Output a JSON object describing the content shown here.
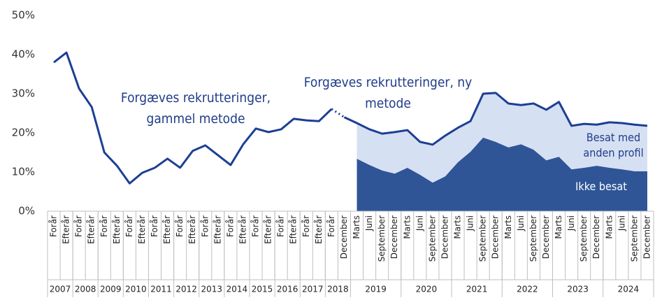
{
  "chart_data": {
    "type": "line",
    "categories": [
      "Forår",
      "Efterår",
      "Forår",
      "Efterår",
      "Forår",
      "Efterår",
      "Forår",
      "Efterår",
      "Forår",
      "Efterår",
      "Forår",
      "Efterår",
      "Forår",
      "Efterår",
      "Forår",
      "Efterår",
      "Forår",
      "Efterår",
      "Forår",
      "Efterår",
      "Forår",
      "Efterår",
      "Forår",
      "December",
      "Marts",
      "Juni",
      "September",
      "December",
      "Marts",
      "Juni",
      "September",
      "December",
      "Marts",
      "Juni",
      "September",
      "December",
      "Marts",
      "Juni",
      "September",
      "December",
      "Marts",
      "Juni",
      "September",
      "December",
      "Marts",
      "Juni",
      "September",
      "December"
    ],
    "category_years": [
      "2007",
      "2007",
      "2008",
      "2008",
      "2009",
      "2009",
      "2010",
      "2010",
      "2011",
      "2011",
      "2012",
      "2012",
      "2013",
      "2013",
      "2014",
      "2014",
      "2015",
      "2015",
      "2016",
      "2016",
      "2017",
      "2017",
      "2018",
      "2018",
      "2019",
      "2019",
      "2019",
      "2019",
      "2020",
      "2020",
      "2020",
      "2020",
      "2021",
      "2021",
      "2021",
      "2021",
      "2022",
      "2022",
      "2022",
      "2022",
      "2023",
      "2023",
      "2023",
      "2023",
      "2024",
      "2024",
      "2024",
      "2024"
    ],
    "series": [
      {
        "name": "Forgæves rekrutteringer, gammel metode",
        "color": "#1c3f94",
        "values": [
          38.0,
          40.5,
          31.3,
          26.6,
          15.0,
          11.6,
          7.1,
          9.8,
          11.1,
          13.4,
          11.1,
          15.4,
          16.8,
          14.3,
          11.8,
          17.1,
          21.1,
          20.2,
          20.9,
          23.6,
          23.2,
          23.0,
          26.1,
          null,
          null,
          null,
          null,
          null,
          null,
          null,
          null,
          null,
          null,
          null,
          null,
          null,
          null,
          null,
          null,
          null,
          null,
          null,
          null,
          null,
          null,
          null,
          null,
          null
        ]
      },
      {
        "name": "Forgæves rekrutteringer, ny metode",
        "color": "#1c3f94",
        "values": [
          null,
          null,
          null,
          null,
          null,
          null,
          null,
          null,
          null,
          null,
          null,
          null,
          null,
          null,
          null,
          null,
          null,
          null,
          null,
          null,
          null,
          null,
          null,
          24.0,
          22.5,
          20.9,
          19.8,
          20.2,
          20.7,
          17.7,
          17.0,
          19.3,
          21.3,
          23.0,
          30.0,
          30.2,
          27.5,
          27.1,
          27.5,
          25.9,
          27.9,
          21.8,
          22.3,
          22.1,
          22.7,
          22.5,
          22.1,
          21.8
        ]
      }
    ],
    "areas": [
      {
        "name": "Ikke besat",
        "color": "#2f5597",
        "values": [
          null,
          null,
          null,
          null,
          null,
          null,
          null,
          null,
          null,
          null,
          null,
          null,
          null,
          null,
          null,
          null,
          null,
          null,
          null,
          null,
          null,
          null,
          null,
          null,
          13.4,
          11.8,
          10.4,
          9.6,
          11.1,
          9.3,
          7.3,
          8.9,
          12.5,
          15.2,
          18.8,
          17.7,
          16.3,
          17.1,
          15.7,
          13.0,
          13.9,
          10.7,
          11.1,
          11.6,
          11.1,
          10.7,
          10.2,
          10.2
        ]
      },
      {
        "name": "Besat med anden profil",
        "color": "#d6e0f3",
        "values": [
          null,
          null,
          null,
          null,
          null,
          null,
          null,
          null,
          null,
          null,
          null,
          null,
          null,
          null,
          null,
          null,
          null,
          null,
          null,
          null,
          null,
          null,
          null,
          null,
          9.1,
          9.1,
          9.4,
          10.6,
          9.6,
          8.4,
          9.7,
          10.4,
          8.8,
          7.8,
          11.2,
          12.5,
          11.2,
          10.0,
          11.8,
          12.9,
          14.0,
          11.1,
          11.2,
          10.5,
          11.6,
          11.8,
          11.9,
          11.6
        ]
      }
    ],
    "ylim": [
      0,
      50
    ],
    "yticks": [
      {
        "value": 0,
        "label": "0%"
      },
      {
        "value": 10,
        "label": "10%"
      },
      {
        "value": 20,
        "label": "20%"
      },
      {
        "value": 30,
        "label": "30%"
      },
      {
        "value": 40,
        "label": "40%"
      },
      {
        "value": 50,
        "label": "50%"
      }
    ],
    "grid": false
  }
}
